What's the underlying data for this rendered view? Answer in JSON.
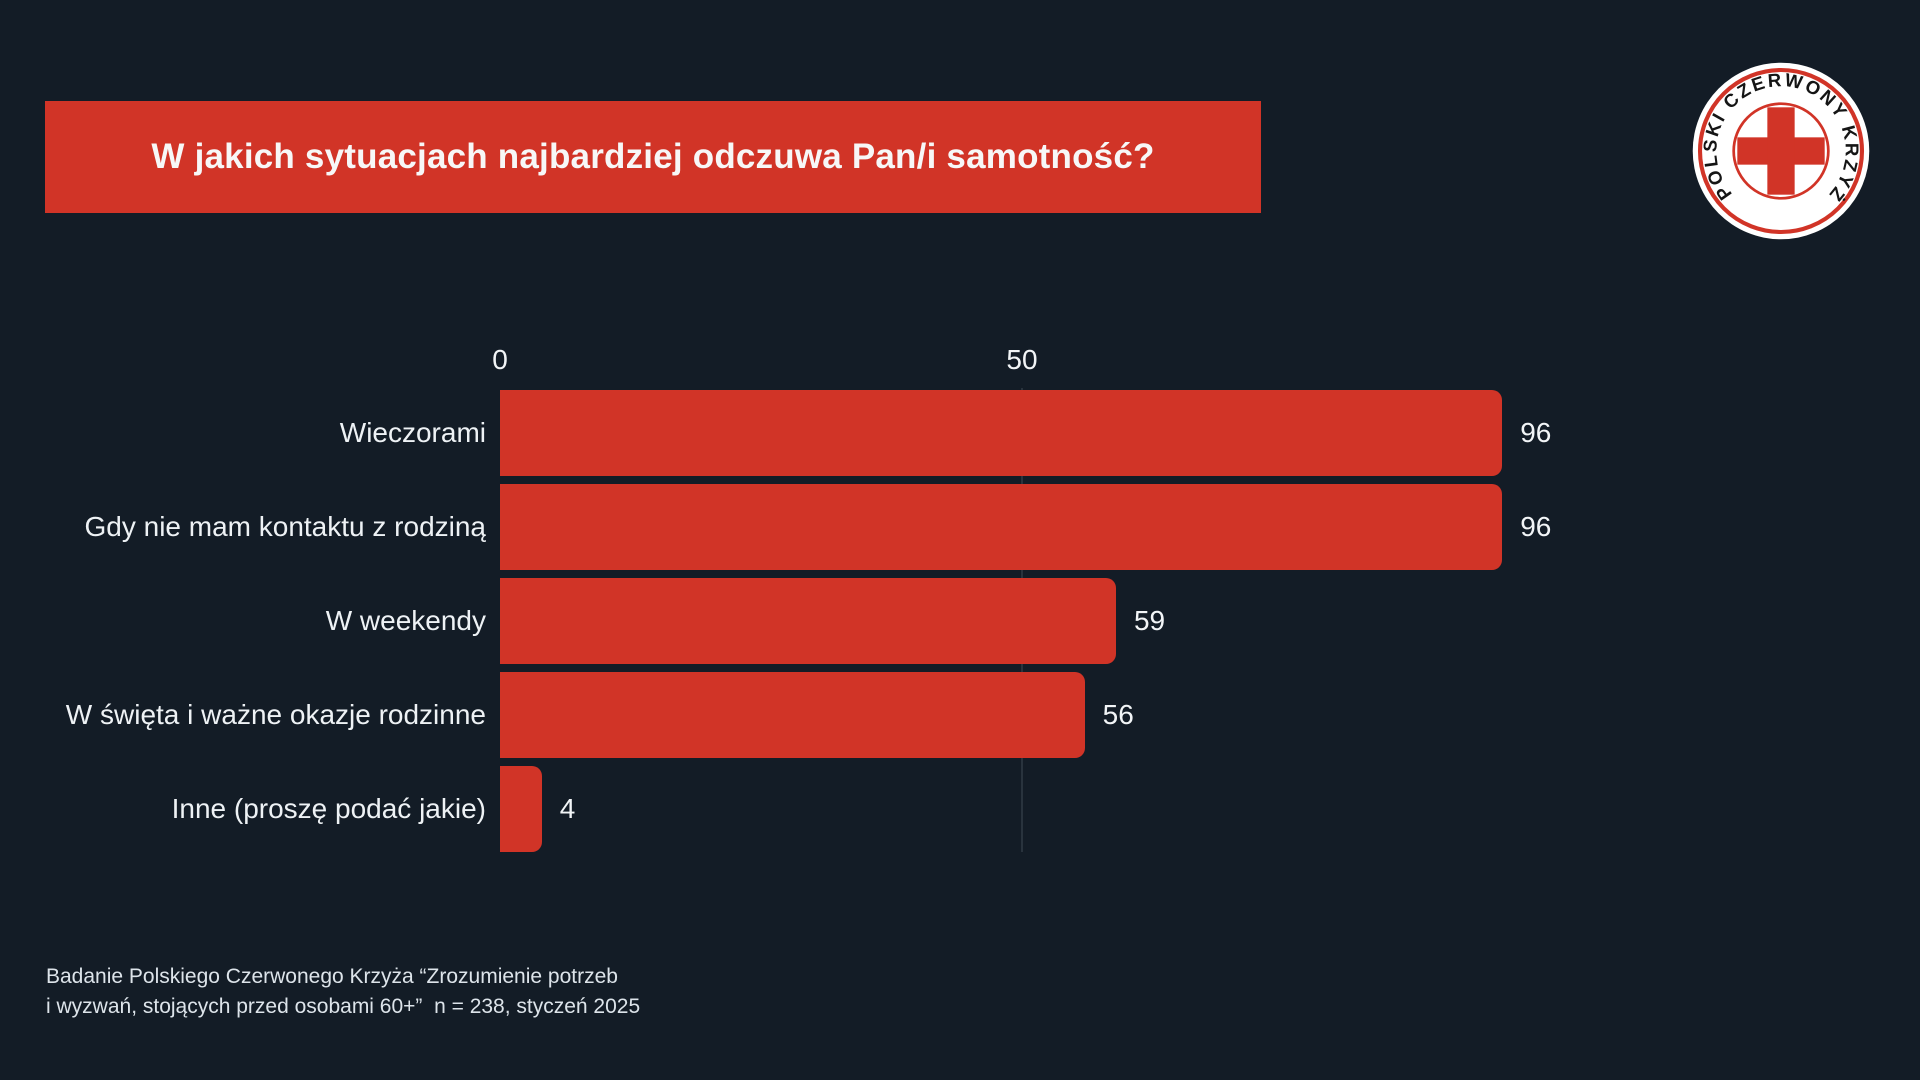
{
  "page": {
    "background": "#131c26",
    "accent_red": "#d13427",
    "gridline_color": "#29333d"
  },
  "header": {
    "title": "W jakich sytuacjach najbardziej odczuwa Pan/i samotność?"
  },
  "logo": {
    "organization": "Polski Czerwony Krzyż",
    "ring_text": "POLSKI CZERWONY KRZYŻ"
  },
  "chart_data": {
    "type": "bar",
    "orientation": "horizontal",
    "title": "W jakich sytuacjach najbardziej odczuwa Pan/i samotność?",
    "categories": [
      "Wieczorami",
      "Gdy nie mam kontaktu z rodziną",
      "W weekendy",
      "W święta i ważne okazje rodzinne",
      "Inne (proszę podać jakie)"
    ],
    "values": [
      96,
      96,
      59,
      56,
      4
    ],
    "x_ticks": [
      0,
      50
    ],
    "xlim": [
      0,
      100
    ],
    "xlabel": "",
    "ylabel": "",
    "bar_color": "#d13427",
    "grid": "faint vertical gridline at x=50",
    "value_labels": true,
    "legend": false
  },
  "footnote": {
    "line1": "Badanie Polskiego Czerwonego Krzyża “Zrozumienie potrzeb",
    "line2": "i wyzwań, stojących przed osobami 60+”  n = 238, styczeń 2025"
  }
}
